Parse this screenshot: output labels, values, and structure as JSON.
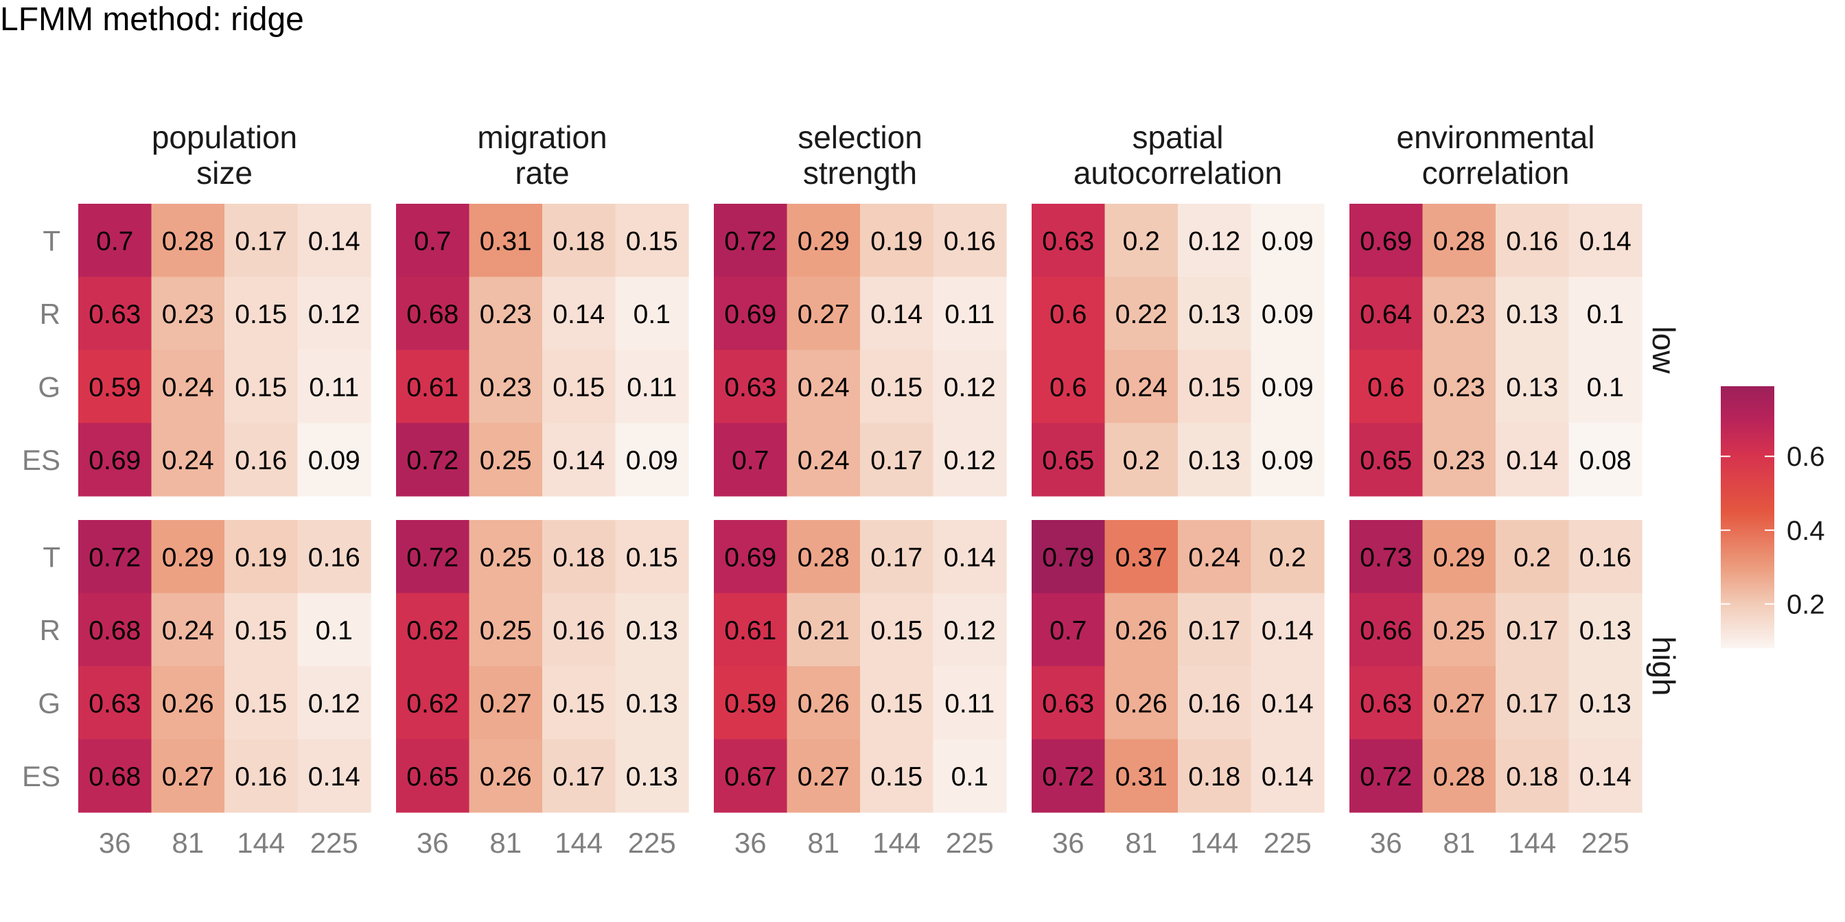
{
  "chart_data": {
    "type": "heatmap",
    "title": "LFMM method: ridge",
    "xlabel": "",
    "ylabel": "",
    "x_categories": [
      "36",
      "81",
      "144",
      "225"
    ],
    "y_categories": [
      "T",
      "R",
      "G",
      "ES"
    ],
    "facet_columns": [
      {
        "name": "population size",
        "lines": [
          "population",
          "size"
        ]
      },
      {
        "name": "migration rate",
        "lines": [
          "migration",
          "rate"
        ]
      },
      {
        "name": "selection strength",
        "lines": [
          "selection",
          "strength"
        ]
      },
      {
        "name": "spatial autocorrelation",
        "lines": [
          "spatial",
          "autocorrelation"
        ]
      },
      {
        "name": "environmental correlation",
        "lines": [
          "environmental",
          "correlation"
        ]
      }
    ],
    "facet_rows": [
      "low",
      "high"
    ],
    "values": {
      "low": [
        [
          [
            0.7,
            0.28,
            0.17,
            0.14
          ],
          [
            0.63,
            0.23,
            0.15,
            0.12
          ],
          [
            0.59,
            0.24,
            0.15,
            0.11
          ],
          [
            0.69,
            0.24,
            0.16,
            0.09
          ]
        ],
        [
          [
            0.7,
            0.31,
            0.18,
            0.15
          ],
          [
            0.68,
            0.23,
            0.14,
            0.1
          ],
          [
            0.61,
            0.23,
            0.15,
            0.11
          ],
          [
            0.72,
            0.25,
            0.14,
            0.09
          ]
        ],
        [
          [
            0.72,
            0.29,
            0.19,
            0.16
          ],
          [
            0.69,
            0.27,
            0.14,
            0.11
          ],
          [
            0.63,
            0.24,
            0.15,
            0.12
          ],
          [
            0.7,
            0.24,
            0.17,
            0.12
          ]
        ],
        [
          [
            0.63,
            0.2,
            0.12,
            0.09
          ],
          [
            0.6,
            0.22,
            0.13,
            0.09
          ],
          [
            0.6,
            0.24,
            0.15,
            0.09
          ],
          [
            0.65,
            0.2,
            0.13,
            0.09
          ]
        ],
        [
          [
            0.69,
            0.28,
            0.16,
            0.14
          ],
          [
            0.64,
            0.23,
            0.13,
            0.1
          ],
          [
            0.6,
            0.23,
            0.13,
            0.1
          ],
          [
            0.65,
            0.23,
            0.14,
            0.08
          ]
        ]
      ],
      "high": [
        [
          [
            0.72,
            0.29,
            0.19,
            0.16
          ],
          [
            0.68,
            0.24,
            0.15,
            0.1
          ],
          [
            0.63,
            0.26,
            0.15,
            0.12
          ],
          [
            0.68,
            0.27,
            0.16,
            0.14
          ]
        ],
        [
          [
            0.72,
            0.25,
            0.18,
            0.15
          ],
          [
            0.62,
            0.25,
            0.16,
            0.13
          ],
          [
            0.62,
            0.27,
            0.15,
            0.13
          ],
          [
            0.65,
            0.26,
            0.17,
            0.13
          ]
        ],
        [
          [
            0.69,
            0.28,
            0.17,
            0.14
          ],
          [
            0.61,
            0.21,
            0.15,
            0.12
          ],
          [
            0.59,
            0.26,
            0.15,
            0.11
          ],
          [
            0.67,
            0.27,
            0.15,
            0.1
          ]
        ],
        [
          [
            0.79,
            0.37,
            0.24,
            0.2
          ],
          [
            0.7,
            0.26,
            0.17,
            0.14
          ],
          [
            0.63,
            0.26,
            0.16,
            0.14
          ],
          [
            0.72,
            0.31,
            0.18,
            0.14
          ]
        ],
        [
          [
            0.73,
            0.29,
            0.2,
            0.16
          ],
          [
            0.66,
            0.25,
            0.17,
            0.13
          ],
          [
            0.63,
            0.27,
            0.17,
            0.13
          ],
          [
            0.72,
            0.28,
            0.18,
            0.14
          ]
        ]
      ]
    },
    "legend": {
      "position": "right",
      "ticks": [
        "0.2",
        "0.4",
        "0.6"
      ],
      "tick_values": [
        0.2,
        0.4,
        0.6
      ],
      "range": [
        0.08,
        0.79
      ]
    },
    "color_stops": [
      "#fbf5f2",
      "#f2cbb7",
      "#ec9c7d",
      "#e4573f",
      "#d7334e",
      "#b8235a",
      "#9e1f5a"
    ],
    "color_stop_values": [
      0.08,
      0.2,
      0.3,
      0.45,
      0.6,
      0.7,
      0.79
    ]
  }
}
